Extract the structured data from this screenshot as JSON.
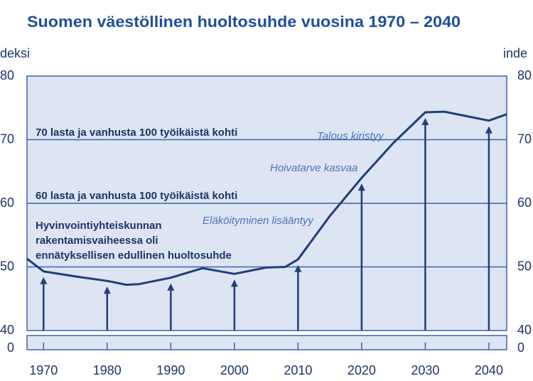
{
  "chart_data": {
    "type": "line",
    "title": "Suomen väestöllinen huoltosuhde vuosina 1970 – 2040",
    "y_label": "deksi",
    "y2_label": "inde",
    "x": [
      1967.4,
      1970,
      1975,
      1980,
      1983,
      1985,
      1990,
      1995,
      2000,
      2005,
      2008,
      2010,
      2015,
      2020,
      2025,
      2030,
      2033,
      2036,
      2040,
      2042.8
    ],
    "series": [
      {
        "color": "#1f3f7a",
        "values": [
          51.3,
          49.3,
          48.5,
          47.8,
          47.2,
          47.3,
          48.3,
          49.8,
          48.9,
          49.9,
          50.0,
          51.2,
          58.0,
          64.0,
          69.5,
          74.3,
          74.4,
          73.8,
          73.0,
          74.0
        ]
      }
    ],
    "xlim": [
      1967.4,
      2042.8
    ],
    "xticks": [
      1970,
      1980,
      1990,
      2000,
      2010,
      2020,
      2030,
      2040
    ],
    "ylim": [
      40,
      80
    ],
    "yticks": [
      40,
      50,
      60,
      70,
      80
    ],
    "y2lim": [
      40,
      80
    ],
    "y2ticks": [
      40,
      50,
      60,
      70,
      80
    ],
    "y_break_tick": 0,
    "grid": true,
    "annotations": [
      {
        "text": [
          "70 lasta ja vanhusta 100 työikäistä kohti"
        ]
      },
      {
        "text": [
          "60 lasta ja vanhusta 100 työikäistä kohti"
        ]
      },
      {
        "text": [
          "Hyvinvointiyhteiskunnan",
          "rakentamisvaiheessa oli",
          "ennätyksellisen edullinen huoltosuhde"
        ]
      },
      {
        "text": [
          "Talous kiristyy"
        ]
      },
      {
        "text": [
          "Hoivatarve kasvaa"
        ]
      },
      {
        "text": [
          "Eläköityminen lisääntyy"
        ]
      }
    ]
  }
}
